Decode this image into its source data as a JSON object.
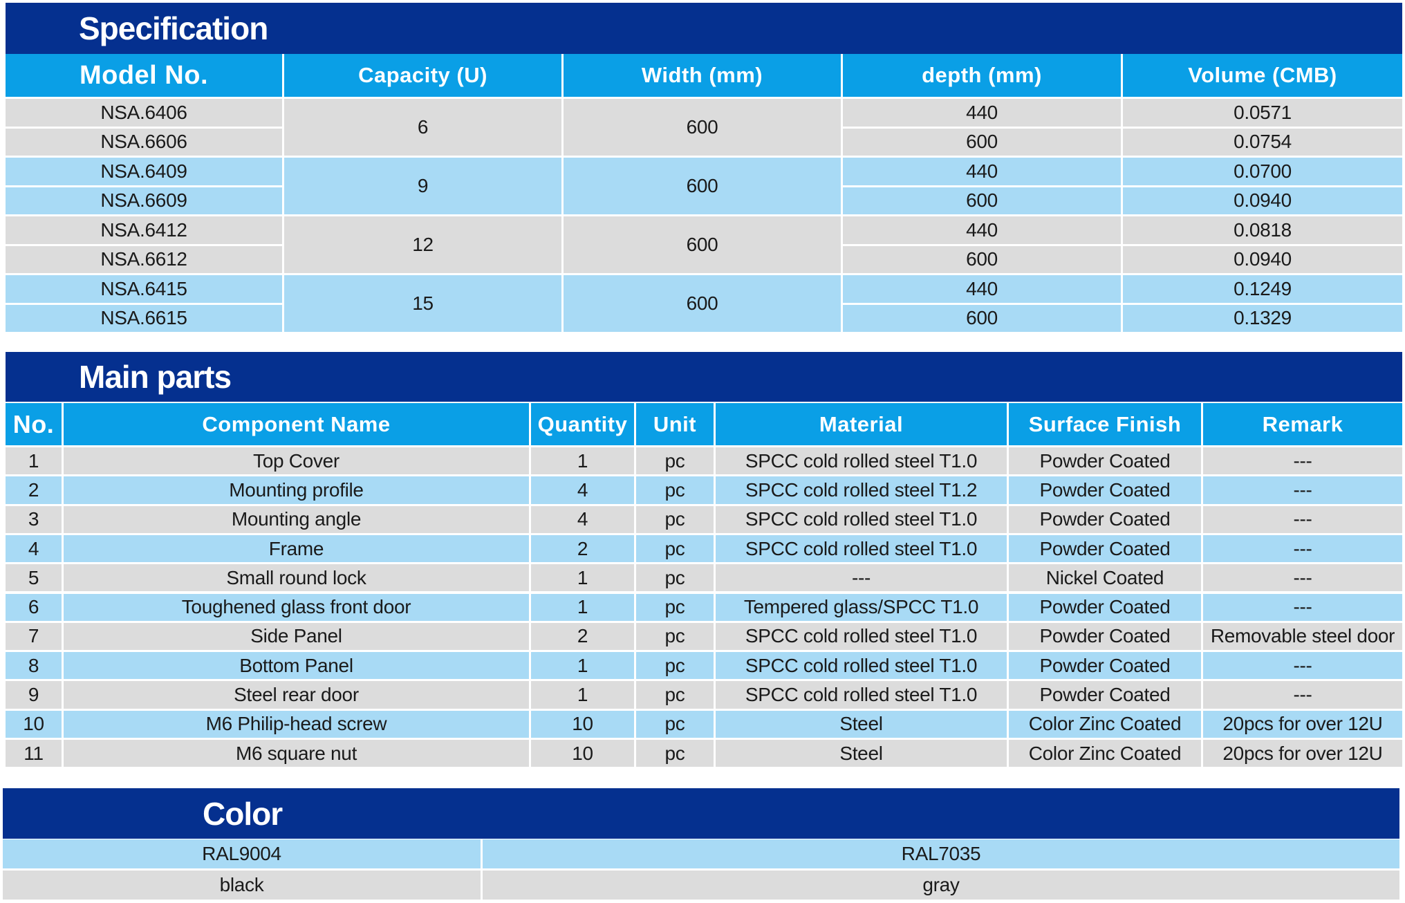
{
  "specification": {
    "title": "Specification",
    "headers": [
      "Model No.",
      "Capacity (U)",
      "Width (mm)",
      "depth (mm)",
      "Volume (CMB)"
    ],
    "groups": [
      {
        "capacity": "6",
        "width": "600",
        "models": [
          {
            "model": "NSA.6406",
            "depth": "440",
            "volume": "0.0571"
          },
          {
            "model": "NSA.6606",
            "depth": "600",
            "volume": "0.0754"
          }
        ]
      },
      {
        "capacity": "9",
        "width": "600",
        "models": [
          {
            "model": "NSA.6409",
            "depth": "440",
            "volume": "0.0700"
          },
          {
            "model": "NSA.6609",
            "depth": "600",
            "volume": "0.0940"
          }
        ]
      },
      {
        "capacity": "12",
        "width": "600",
        "models": [
          {
            "model": "NSA.6412",
            "depth": "440",
            "volume": "0.0818"
          },
          {
            "model": "NSA.6612",
            "depth": "600",
            "volume": "0.0940"
          }
        ]
      },
      {
        "capacity": "15",
        "width": "600",
        "models": [
          {
            "model": "NSA.6415",
            "depth": "440",
            "volume": "0.1249"
          },
          {
            "model": "NSA.6615",
            "depth": "600",
            "volume": "0.1329"
          }
        ]
      }
    ]
  },
  "main_parts": {
    "title": "Main parts",
    "headers": [
      "No.",
      "Component Name",
      "Quantity",
      "Unit",
      "Material",
      "Surface Finish",
      "Remark"
    ],
    "rows": [
      [
        "1",
        "Top Cover",
        "1",
        "pc",
        "SPCC cold rolled steel T1.0",
        "Powder Coated",
        "---"
      ],
      [
        "2",
        "Mounting profile",
        "4",
        "pc",
        "SPCC cold rolled steel T1.2",
        "Powder Coated",
        "---"
      ],
      [
        "3",
        "Mounting angle",
        "4",
        "pc",
        "SPCC cold rolled steel T1.0",
        "Powder Coated",
        "---"
      ],
      [
        "4",
        "Frame",
        "2",
        "pc",
        "SPCC cold rolled steel T1.0",
        "Powder Coated",
        "---"
      ],
      [
        "5",
        "Small round lock",
        "1",
        "pc",
        "---",
        "Nickel Coated",
        "---"
      ],
      [
        "6",
        "Toughened glass front door",
        "1",
        "pc",
        "Tempered glass/SPCC T1.0",
        "Powder Coated",
        "---"
      ],
      [
        "7",
        "Side Panel",
        "2",
        "pc",
        "SPCC cold rolled steel T1.0",
        "Powder Coated",
        "Removable steel door"
      ],
      [
        "8",
        "Bottom Panel",
        "1",
        "pc",
        "SPCC cold rolled steel T1.0",
        "Powder Coated",
        "---"
      ],
      [
        "9",
        "Steel rear door",
        "1",
        "pc",
        "SPCC cold rolled steel T1.0",
        "Powder Coated",
        "---"
      ],
      [
        "10",
        "M6 Philip-head screw",
        "10",
        "pc",
        "Steel",
        "Color Zinc Coated",
        "20pcs for over 12U"
      ],
      [
        "11",
        "M6 square nut",
        "10",
        "pc",
        "Steel",
        "Color Zinc Coated",
        "20pcs for over 12U"
      ]
    ]
  },
  "color": {
    "title": "Color",
    "codes": [
      "RAL9004",
      "RAL7035"
    ],
    "names": [
      "black",
      "gray"
    ]
  }
}
